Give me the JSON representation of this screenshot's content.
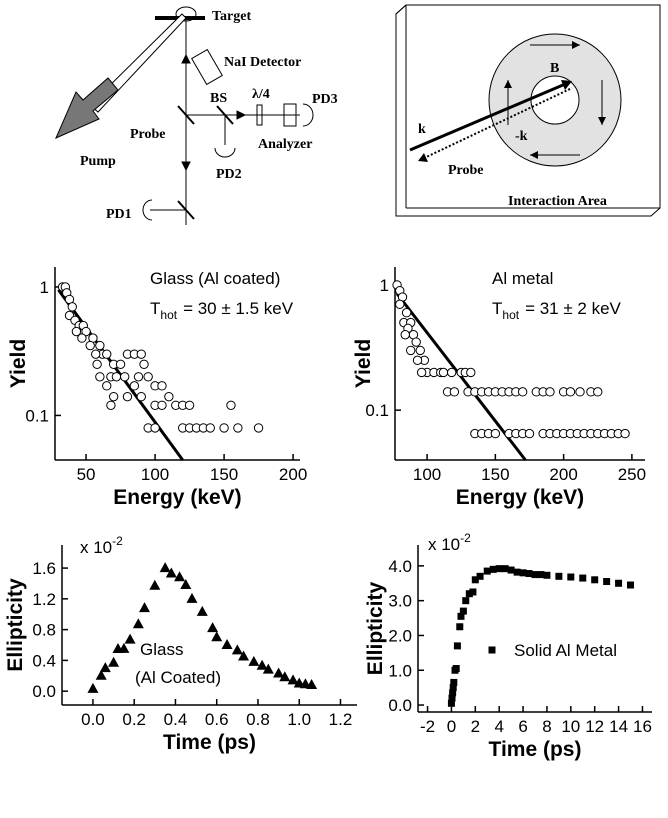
{
  "setup": {
    "target": "Target",
    "detector": "NaI Detector",
    "pump": "Pump",
    "bs": "BS",
    "waveplate": "λ/4",
    "pd3": "PD3",
    "probe": "Probe",
    "analyzer": "Analyzer",
    "pd1": "PD1",
    "pd2": "PD2"
  },
  "interaction": {
    "b": "B",
    "k": "k",
    "minus_k": "-k",
    "probe": "Probe",
    "caption": "Interaction Area"
  },
  "chart_data": [
    {
      "type": "scatter",
      "yscale": "log",
      "annotation": "Glass (Al coated)",
      "temperature": {
        "symbol": "T",
        "sub": "hot",
        "text": "= 30 ± 1.5 keV"
      },
      "x_label": "Energy (keV)",
      "y_label": "Yield",
      "xlim": [
        27.5,
        205
      ],
      "ylim": [
        0.045,
        1.43
      ],
      "xticks": [
        50,
        100,
        150,
        200
      ],
      "yticks": [
        0.1,
        1
      ],
      "series": [
        {
          "color": "#000000",
          "marker": "circle",
          "x": [
            33,
            35,
            36,
            38,
            40,
            38,
            42,
            45,
            48,
            50,
            43,
            47,
            55,
            53,
            60,
            62,
            57,
            65,
            80,
            85,
            90,
            58,
            70,
            75,
            92,
            60,
            68,
            72,
            78,
            88,
            95,
            65,
            85,
            100,
            105,
            70,
            80,
            90,
            110,
            68,
            100,
            105,
            115,
            120,
            125,
            155,
            95,
            100,
            120,
            125,
            130,
            135,
            140,
            150,
            160,
            175
          ],
          "y": [
            1.0,
            1.0,
            0.9,
            0.8,
            0.7,
            0.6,
            0.55,
            0.5,
            0.5,
            0.45,
            0.45,
            0.4,
            0.4,
            0.35,
            0.35,
            0.3,
            0.3,
            0.3,
            0.3,
            0.3,
            0.3,
            0.25,
            0.25,
            0.25,
            0.25,
            0.2,
            0.2,
            0.2,
            0.2,
            0.2,
            0.2,
            0.17,
            0.17,
            0.17,
            0.17,
            0.14,
            0.14,
            0.14,
            0.14,
            0.12,
            0.12,
            0.12,
            0.12,
            0.12,
            0.12,
            0.12,
            0.08,
            0.08,
            0.08,
            0.08,
            0.08,
            0.08,
            0.08,
            0.08,
            0.08,
            0.08
          ]
        }
      ],
      "fit": {
        "x": [
          30,
          120
        ],
        "y": [
          0.95,
          0.045
        ]
      }
    },
    {
      "type": "scatter",
      "yscale": "log",
      "annotation": "Al metal",
      "temperature": {
        "symbol": "T",
        "sub": "hot",
        "text": "= 31 ± 2 keV"
      },
      "x_label": "Energy (keV)",
      "y_label": "Yield",
      "xlim": [
        76.5,
        259.6
      ],
      "ylim": [
        0.04,
        1.39
      ],
      "xticks": [
        100,
        150,
        200,
        250
      ],
      "yticks": [
        0.1,
        1
      ],
      "series": [
        {
          "color": "#000000",
          "marker": "circle",
          "x": [
            78,
            80,
            82,
            80,
            85,
            83,
            88,
            86,
            90,
            84,
            92,
            95,
            88,
            98,
            93,
            100,
            96,
            105,
            110,
            112,
            118,
            125,
            128,
            132,
            115,
            120,
            130,
            135,
            140,
            145,
            150,
            155,
            160,
            165,
            170,
            180,
            185,
            190,
            200,
            205,
            212,
            220,
            225,
            135,
            140,
            145,
            150,
            160,
            165,
            170,
            175,
            185,
            190,
            195,
            200,
            205,
            210,
            215,
            220,
            225,
            230,
            235,
            240,
            245
          ],
          "y": [
            1.0,
            0.9,
            0.8,
            0.7,
            0.6,
            0.5,
            0.5,
            0.45,
            0.4,
            0.4,
            0.35,
            0.3,
            0.3,
            0.25,
            0.25,
            0.2,
            0.2,
            0.2,
            0.2,
            0.2,
            0.2,
            0.2,
            0.2,
            0.2,
            0.14,
            0.14,
            0.14,
            0.14,
            0.14,
            0.14,
            0.14,
            0.14,
            0.14,
            0.14,
            0.14,
            0.14,
            0.14,
            0.14,
            0.14,
            0.14,
            0.14,
            0.14,
            0.14,
            0.065,
            0.065,
            0.065,
            0.065,
            0.065,
            0.065,
            0.065,
            0.065,
            0.065,
            0.065,
            0.065,
            0.065,
            0.065,
            0.065,
            0.065,
            0.065,
            0.065,
            0.065,
            0.065,
            0.065,
            0.065
          ]
        }
      ],
      "fit": {
        "x": [
          78,
          172
        ],
        "y": [
          0.85,
          0.04
        ]
      }
    },
    {
      "type": "scatter",
      "x_label": "Time (ps)",
      "y_label": "Ellipticity",
      "multiplier": {
        "base": "x 10",
        "exp": "-2"
      },
      "xlim": [
        -0.15,
        1.28
      ],
      "ylim": [
        -0.18,
        1.9
      ],
      "xticks": [
        {
          "value": 0,
          "label": "0.0"
        },
        0.2,
        0.4,
        0.6,
        0.8,
        {
          "value": 1,
          "label": "1.0"
        },
        1.2
      ],
      "yticks": [
        {
          "value": 0,
          "label": "0.0"
        },
        0.4,
        0.8,
        1.2,
        1.6
      ],
      "series": [
        {
          "name": "Glass",
          "color": "#000000",
          "marker": "triangle",
          "x": [
            0,
            0.04,
            0.06,
            0.1,
            0.15,
            0.18,
            0.22,
            0.25,
            0.3,
            0.35,
            0.38,
            0.42,
            0.45,
            0.48,
            0.53,
            0.58,
            0.6,
            0.65,
            0.7,
            0.73,
            0.78,
            0.82,
            0.85,
            0.9,
            0.93,
            0.97,
            1.0,
            1.03,
            1.06
          ],
          "y": [
            0.03,
            0.2,
            0.3,
            0.37,
            0.55,
            0.67,
            0.87,
            1.08,
            1.37,
            1.6,
            1.53,
            1.48,
            1.38,
            1.2,
            1.03,
            0.82,
            0.7,
            0.6,
            0.53,
            0.45,
            0.38,
            0.33,
            0.28,
            0.23,
            0.18,
            0.14,
            0.1,
            0.09,
            0.08
          ]
        }
      ],
      "legend_note": "(Al  Coated)"
    },
    {
      "type": "scatter",
      "x_label": "Time (ps)",
      "y_label": "Ellipticity",
      "multiplier": {
        "base": "x 10",
        "exp": "-2"
      },
      "xlim": [
        -2.8,
        16.8
      ],
      "ylim": [
        -0.2,
        4.6
      ],
      "xticks": [
        -2,
        0,
        2,
        4,
        6,
        8,
        10,
        12,
        14,
        16
      ],
      "yticks": [
        {
          "value": 0,
          "label": "0.0"
        },
        {
          "value": 1,
          "label": "1.0"
        },
        {
          "value": 2,
          "label": "2.0"
        },
        {
          "value": 3,
          "label": "3.0"
        },
        {
          "value": 4,
          "label": "4.0"
        }
      ],
      "series": [
        {
          "name": "Solid Al Metal",
          "color": "#000000",
          "marker": "square",
          "x": [
            0,
            0.05,
            0.1,
            0.15,
            0.2,
            0.3,
            0.4,
            0.5,
            0.7,
            0.8,
            1,
            1.2,
            1.5,
            1.8,
            2,
            2.4,
            3,
            3.5,
            4,
            4.5,
            5,
            5.5,
            6,
            6.5,
            7,
            7.5,
            8,
            9,
            10,
            11,
            12,
            13,
            14,
            15
          ],
          "y": [
            0.05,
            0.2,
            0.35,
            0.5,
            0.65,
            1.0,
            1.05,
            1.7,
            2.25,
            2.55,
            2.7,
            3.0,
            3.2,
            3.25,
            3.6,
            3.7,
            3.85,
            3.9,
            3.92,
            3.92,
            3.88,
            3.82,
            3.8,
            3.78,
            3.75,
            3.75,
            3.73,
            3.7,
            3.68,
            3.65,
            3.6,
            3.55,
            3.5,
            3.45
          ]
        }
      ]
    }
  ]
}
